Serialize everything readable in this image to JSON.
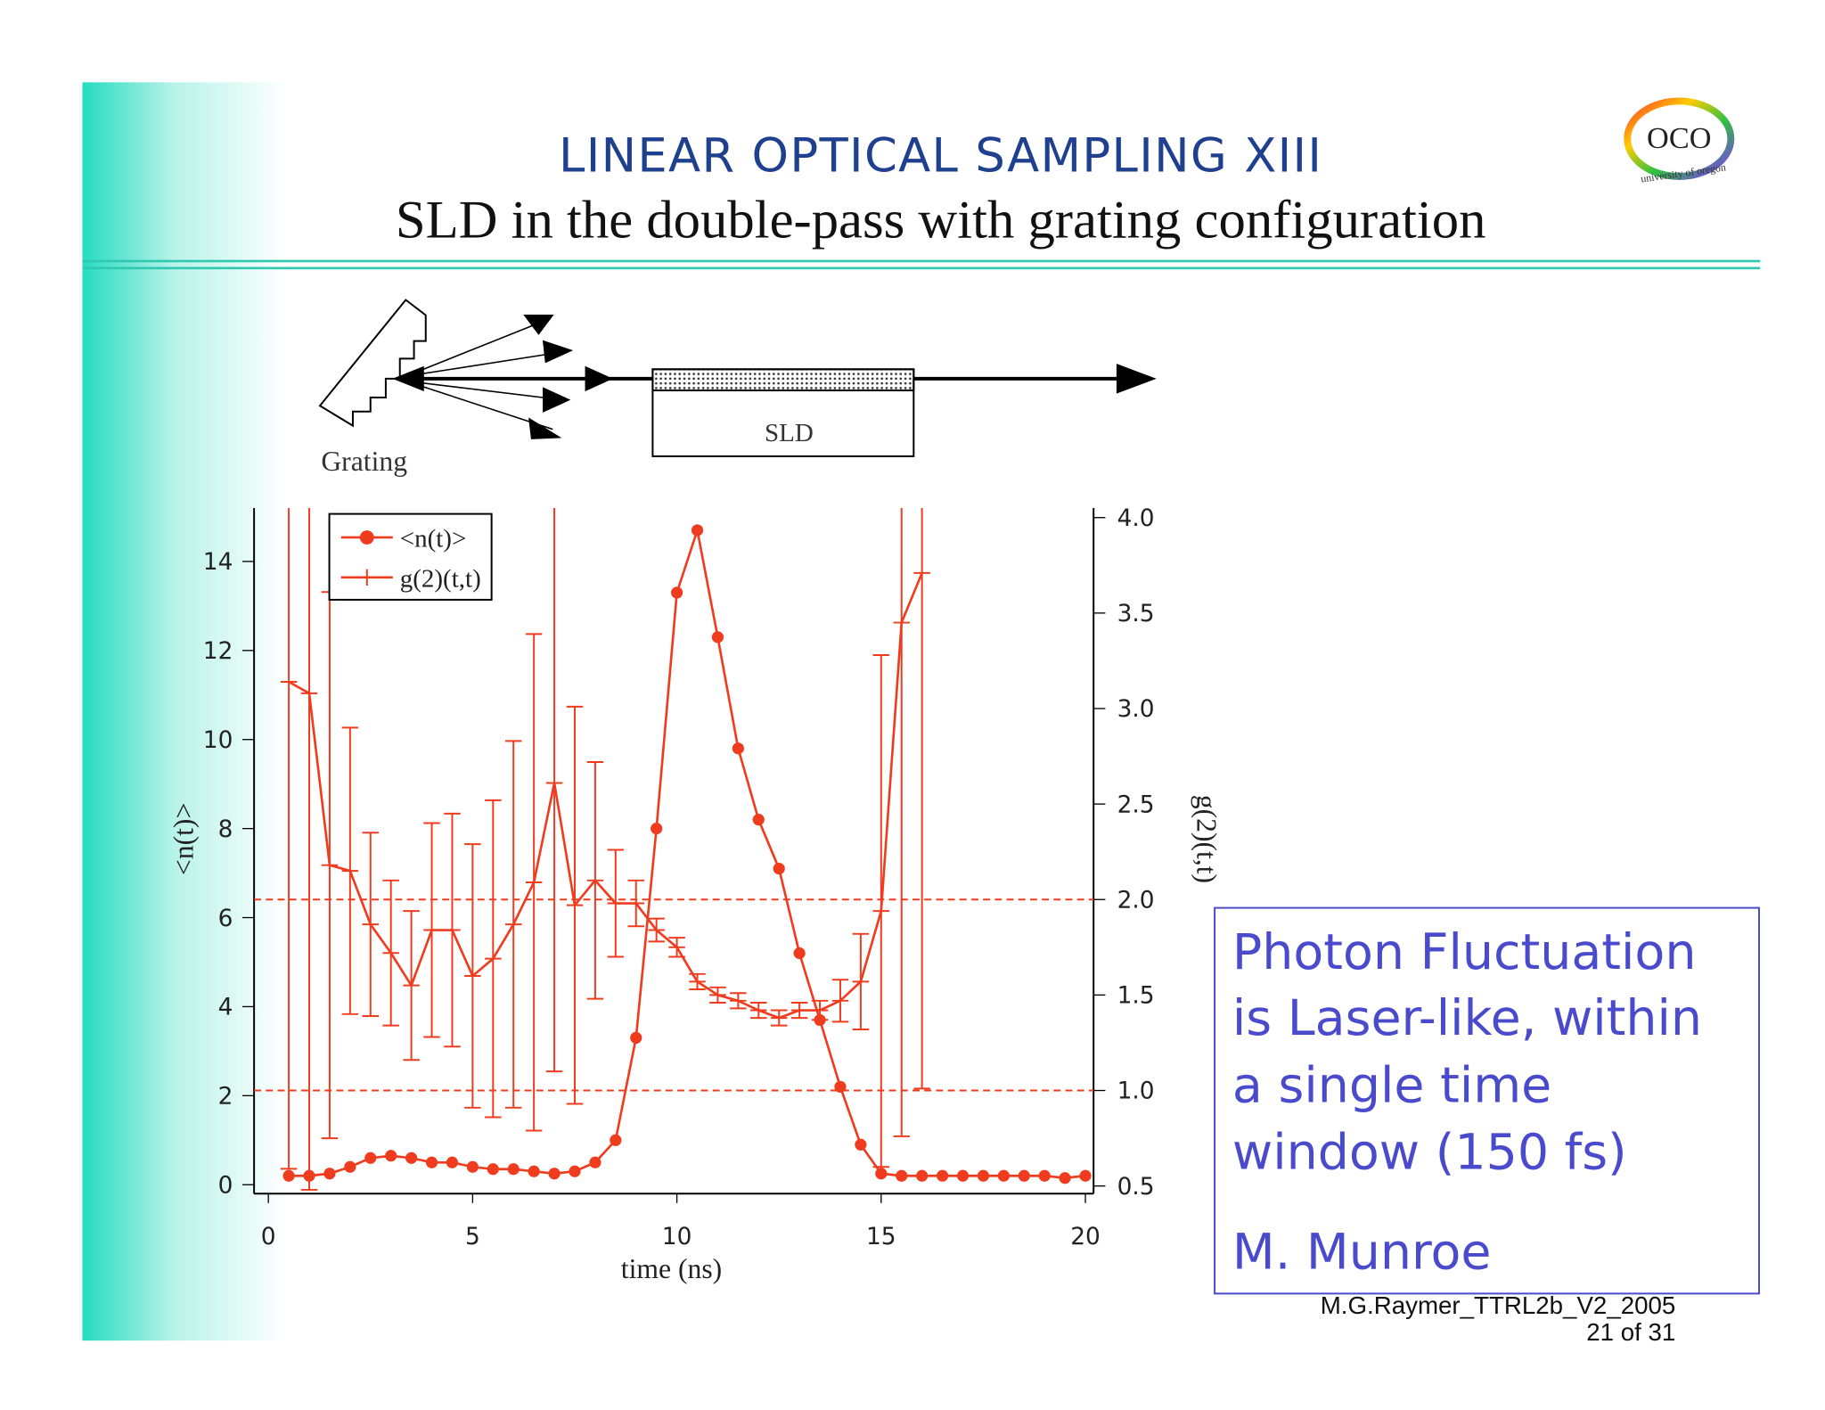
{
  "title": "LINEAR OPTICAL SAMPLING XIII",
  "subtitle": "SLD in the double-pass with grating configuration",
  "logo": "OCO",
  "logo_caption": "university of oregon",
  "diagram": {
    "grating": "Grating",
    "sld": "SLD"
  },
  "chart_data": {
    "type": "line",
    "xlabel": "time (ns)",
    "ylabel": "<n(t)>",
    "y2label": "g(2)(t,t)",
    "x": [
      0.5,
      1,
      1.5,
      2,
      2.5,
      3,
      3.5,
      4,
      4.5,
      5,
      5.5,
      6,
      6.5,
      7,
      7.5,
      8,
      8.5,
      9,
      9.5,
      10,
      10.5,
      11,
      11.5,
      12,
      12.5,
      13,
      13.5,
      14,
      14.5,
      15,
      15.5,
      16,
      16.5,
      17,
      17.5,
      18,
      18.5,
      19,
      19.5,
      20
    ],
    "series": [
      {
        "name": "<n(t)>",
        "color": "#f03c1e",
        "marker": "circle",
        "values": [
          0.2,
          0.2,
          0.25,
          0.4,
          0.6,
          0.65,
          0.6,
          0.5,
          0.5,
          0.4,
          0.35,
          0.35,
          0.3,
          0.25,
          0.3,
          0.5,
          1.0,
          3.3,
          8.0,
          13.3,
          14.7,
          12.3,
          9.8,
          8.2,
          7.1,
          5.2,
          3.7,
          2.2,
          0.9,
          0.25,
          0.2,
          0.2,
          0.2,
          0.2,
          0.2,
          0.2,
          0.2,
          0.2,
          0.15,
          0.2
        ]
      },
      {
        "name": "g(2)(t,t)",
        "color": "#f03c1e",
        "marker": "plus",
        "axis": "y2",
        "values": [
          3.14,
          3.08,
          2.18,
          2.15,
          1.87,
          1.72,
          1.55,
          1.84,
          1.84,
          1.6,
          1.69,
          1.87,
          2.09,
          2.61,
          1.97,
          2.1,
          1.98,
          1.98,
          1.84,
          1.75,
          1.57,
          1.5,
          1.47,
          1.42,
          1.38,
          1.42,
          1.42,
          1.47,
          1.57,
          1.94,
          3.45,
          3.71,
          null,
          null,
          null,
          null,
          null,
          null,
          null,
          null
        ],
        "errors": [
          2.55,
          2.6,
          1.43,
          0.75,
          0.48,
          0.38,
          0.39,
          0.56,
          0.61,
          0.69,
          0.83,
          0.96,
          1.3,
          1.51,
          1.04,
          0.62,
          0.28,
          0.12,
          0.06,
          0.05,
          0.04,
          0.04,
          0.04,
          0.04,
          0.04,
          0.04,
          0.05,
          0.11,
          0.25,
          1.34,
          2.69,
          2.7,
          null,
          null,
          null,
          null,
          null,
          null,
          null,
          null
        ]
      }
    ],
    "xlim": [
      -0.35,
      20.2
    ],
    "xticks": [
      0,
      5,
      10,
      15,
      20
    ],
    "ylim": [
      -0.2,
      15.2
    ],
    "yticks": [
      0,
      2,
      4,
      6,
      8,
      10,
      12,
      14
    ],
    "y2lim": [
      0.46,
      4.05
    ],
    "y2ticks": [
      {
        "value": 0.5,
        "label": "0.5"
      },
      {
        "value": 1,
        "label": "1.0"
      },
      {
        "value": 1.5,
        "label": "1.5"
      },
      {
        "value": 2,
        "label": "2.0"
      },
      {
        "value": 2.5,
        "label": "2.5"
      },
      {
        "value": 3,
        "label": "3.0"
      },
      {
        "value": 3.5,
        "label": "3.5"
      },
      {
        "value": 4,
        "label": "4.0"
      }
    ],
    "y2_reference_lines": [
      1,
      2
    ],
    "legend": "upper left"
  },
  "note": {
    "lines": [
      "Photon Fluctuation",
      "is Laser-like, within",
      "a single time",
      "window (150 fs)"
    ],
    "author": "M. Munroe"
  },
  "footer": {
    "file": "M.G.Raymer_TTRL2b_V2_2005",
    "page": "21 of 31"
  }
}
